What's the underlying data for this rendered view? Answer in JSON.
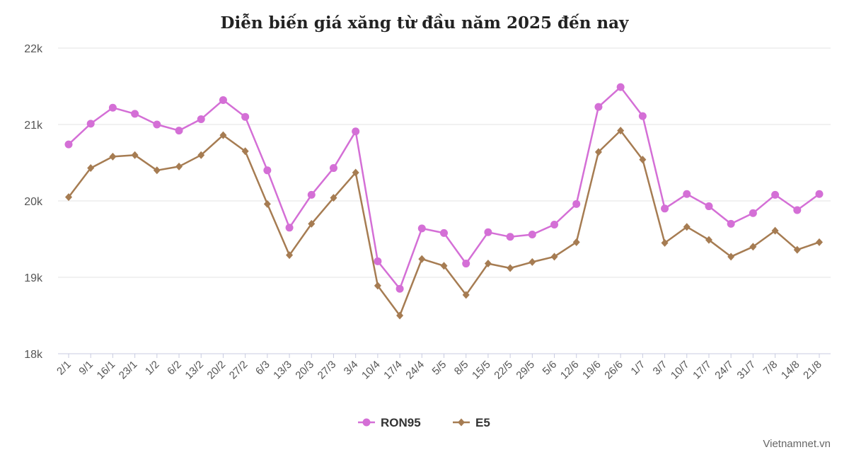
{
  "chart_data": {
    "type": "line",
    "title": "Diễn biến giá xăng từ đầu năm 2025 đến nay",
    "categories": [
      "2/1",
      "9/1",
      "16/1",
      "23/1",
      "1/2",
      "6/2",
      "13/2",
      "20/2",
      "27/2",
      "6/3",
      "13/3",
      "20/3",
      "27/3",
      "3/4",
      "10/4",
      "17/4",
      "24/4",
      "5/5",
      "8/5",
      "15/5",
      "22/5",
      "29/5",
      "5/6",
      "12/6",
      "19/6",
      "26/6",
      "1/7",
      "3/7",
      "10/7",
      "17/7",
      "24/7",
      "31/7",
      "7/8",
      "14/8",
      "21/8"
    ],
    "series": [
      {
        "name": "RON95",
        "color": "#d46fd6",
        "marker": "circle",
        "values": [
          20740,
          21010,
          21220,
          21140,
          21000,
          20920,
          21070,
          21320,
          21100,
          20400,
          19650,
          20080,
          20430,
          20910,
          19210,
          18850,
          19640,
          19580,
          19180,
          19590,
          19530,
          19560,
          19690,
          19960,
          21230,
          21490,
          21110,
          19900,
          20090,
          19930,
          19700,
          19840,
          20080,
          19880,
          20090
        ]
      },
      {
        "name": "E5",
        "color": "#a67c52",
        "marker": "diamond",
        "values": [
          20050,
          20430,
          20580,
          20600,
          20400,
          20450,
          20600,
          20860,
          20650,
          19960,
          19290,
          19700,
          20040,
          20370,
          18890,
          18500,
          19240,
          19150,
          18770,
          19180,
          19120,
          19200,
          19270,
          19460,
          20640,
          20920,
          20540,
          19450,
          19660,
          19490,
          19270,
          19400,
          19610,
          19360,
          19460
        ]
      }
    ],
    "yticks": [
      18000,
      19000,
      20000,
      21000,
      22000
    ],
    "ytick_labels": [
      "18k",
      "19k",
      "20k",
      "21k",
      "22k"
    ],
    "ylim": [
      18000,
      22000
    ],
    "xlabel": "",
    "ylabel": "",
    "grid": true,
    "legend_position": "bottom-center"
  },
  "credit": "Vietnamnet.vn"
}
